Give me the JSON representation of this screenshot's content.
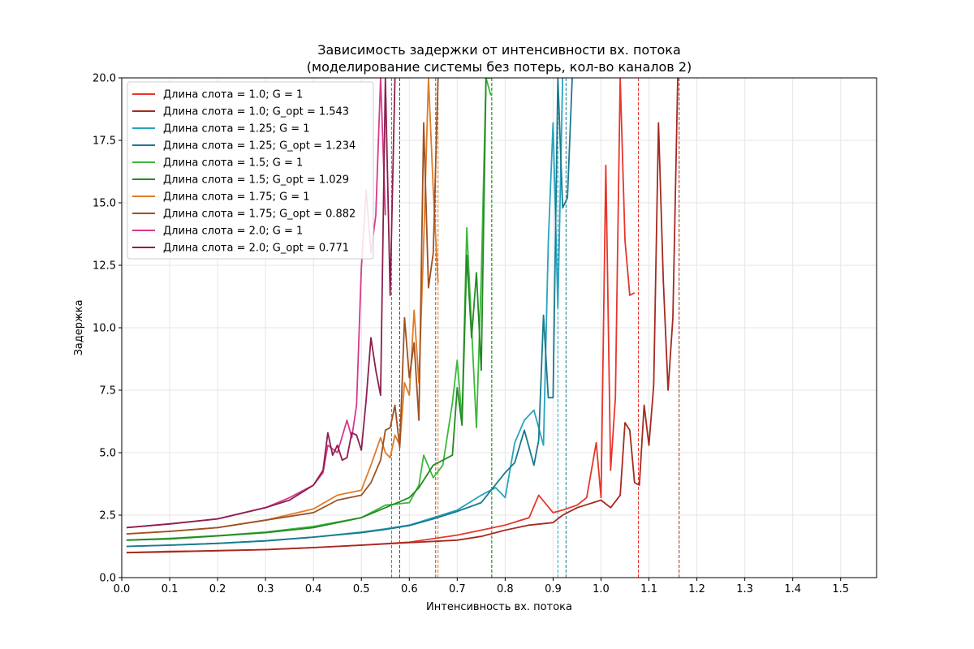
{
  "chart_data": {
    "type": "line",
    "title_line1": "Зависимость задержки от интенсивности вх. потока",
    "title_line2": "(моделирование системы без потерь, кол-во каналов 2)",
    "xlabel": "Интенсивность вх. потока",
    "ylabel": "Задержка",
    "xlim": [
      0.0,
      1.575
    ],
    "ylim": [
      0.0,
      20.0
    ],
    "xticks": [
      "0.0",
      "0.1",
      "0.2",
      "0.3",
      "0.4",
      "0.5",
      "0.6",
      "0.7",
      "0.8",
      "0.9",
      "1.0",
      "1.1",
      "1.2",
      "1.3",
      "1.4",
      "1.5"
    ],
    "yticks": [
      "0.0",
      "2.5",
      "5.0",
      "7.5",
      "10.0",
      "12.5",
      "15.0",
      "17.5",
      "20.0"
    ],
    "grid": true,
    "legend_position": "top-left",
    "series": [
      {
        "name": "Длина слота = 1.0; G = 1",
        "color": "#e8352b",
        "vline": 1.078,
        "x": [
          0.01,
          0.1,
          0.2,
          0.3,
          0.4,
          0.5,
          0.6,
          0.7,
          0.75,
          0.8,
          0.85,
          0.87,
          0.9,
          0.92,
          0.95,
          0.97,
          0.99,
          1.0,
          1.01,
          1.02,
          1.03,
          1.04,
          1.05,
          1.06,
          1.07
        ],
        "y": [
          1.0,
          1.05,
          1.07,
          1.12,
          1.2,
          1.3,
          1.42,
          1.7,
          1.9,
          2.1,
          2.4,
          3.3,
          2.6,
          2.7,
          2.9,
          3.2,
          5.4,
          3.2,
          16.5,
          4.3,
          7.2,
          20.0,
          13.5,
          11.3,
          11.4
        ]
      },
      {
        "name": "Длина слота = 1.0; G_opt = 1.543",
        "color": "#a52a1f",
        "vline": 1.163,
        "x": [
          0.01,
          0.1,
          0.2,
          0.3,
          0.4,
          0.5,
          0.6,
          0.7,
          0.75,
          0.8,
          0.85,
          0.9,
          0.92,
          0.95,
          1.0,
          1.02,
          1.04,
          1.05,
          1.06,
          1.07,
          1.08,
          1.09,
          1.1,
          1.11,
          1.12,
          1.13,
          1.14,
          1.15,
          1.16
        ],
        "y": [
          1.0,
          1.03,
          1.08,
          1.12,
          1.2,
          1.3,
          1.4,
          1.5,
          1.65,
          1.9,
          2.1,
          2.2,
          2.5,
          2.8,
          3.1,
          2.8,
          3.3,
          6.2,
          5.9,
          3.8,
          3.7,
          6.9,
          5.3,
          7.7,
          18.2,
          11.9,
          7.5,
          10.4,
          20.0
        ]
      },
      {
        "name": "Длина слота = 1.25; G = 1",
        "color": "#28a3c0",
        "vline": 0.91,
        "x": [
          0.01,
          0.1,
          0.2,
          0.3,
          0.4,
          0.5,
          0.55,
          0.6,
          0.65,
          0.7,
          0.75,
          0.78,
          0.8,
          0.82,
          0.84,
          0.86,
          0.88,
          0.89,
          0.9,
          0.91,
          0.92
        ],
        "y": [
          1.25,
          1.3,
          1.37,
          1.47,
          1.62,
          1.82,
          1.95,
          2.1,
          2.4,
          2.7,
          3.3,
          3.6,
          3.2,
          5.4,
          6.3,
          6.7,
          5.3,
          13.4,
          18.2,
          10.8,
          20.0
        ]
      },
      {
        "name": "Длина слота = 1.25; G_opt = 1.234",
        "color": "#1a7a8c",
        "vline": 0.927,
        "x": [
          0.01,
          0.1,
          0.2,
          0.3,
          0.4,
          0.5,
          0.55,
          0.6,
          0.65,
          0.7,
          0.75,
          0.8,
          0.82,
          0.84,
          0.86,
          0.87,
          0.88,
          0.89,
          0.9,
          0.91,
          0.92,
          0.93,
          0.94
        ],
        "y": [
          1.25,
          1.3,
          1.37,
          1.47,
          1.62,
          1.8,
          1.93,
          2.08,
          2.35,
          2.65,
          3.0,
          4.2,
          4.6,
          5.9,
          4.5,
          5.5,
          10.5,
          7.2,
          7.2,
          20.0,
          14.8,
          15.2,
          20.0
        ]
      },
      {
        "name": "Длина слота = 1.5; G = 1",
        "color": "#3cb83c",
        "vline": 0.772,
        "x": [
          0.01,
          0.1,
          0.2,
          0.3,
          0.4,
          0.5,
          0.55,
          0.6,
          0.62,
          0.63,
          0.65,
          0.67,
          0.69,
          0.7,
          0.71,
          0.72,
          0.73,
          0.74,
          0.75,
          0.76,
          0.77
        ],
        "y": [
          1.5,
          1.57,
          1.68,
          1.82,
          2.05,
          2.4,
          2.9,
          3.0,
          3.7,
          4.9,
          4.0,
          4.5,
          7.0,
          8.7,
          6.3,
          14.0,
          10.0,
          6.0,
          12.0,
          20.0,
          19.3
        ]
      },
      {
        "name": "Длина слота = 1.5; G_opt = 1.029",
        "color": "#248a24",
        "vline": 0.772,
        "x": [
          0.01,
          0.1,
          0.2,
          0.3,
          0.4,
          0.5,
          0.55,
          0.6,
          0.62,
          0.63,
          0.65,
          0.66,
          0.68,
          0.69,
          0.7,
          0.71,
          0.72,
          0.73,
          0.74,
          0.75,
          0.76,
          0.77
        ],
        "y": [
          1.5,
          1.55,
          1.67,
          1.8,
          2.0,
          2.4,
          2.8,
          3.2,
          3.6,
          3.9,
          4.5,
          4.6,
          4.8,
          4.9,
          7.6,
          6.1,
          12.9,
          9.6,
          12.2,
          8.3,
          20.0,
          20.0
        ]
      },
      {
        "name": "Длина слота = 1.75; G = 1",
        "color": "#e07b28",
        "vline": 0.66,
        "x": [
          0.01,
          0.1,
          0.2,
          0.3,
          0.4,
          0.45,
          0.5,
          0.52,
          0.54,
          0.55,
          0.56,
          0.57,
          0.58,
          0.59,
          0.6,
          0.61,
          0.62,
          0.63,
          0.64,
          0.65,
          0.66
        ],
        "y": [
          1.75,
          1.85,
          2.0,
          2.3,
          2.75,
          3.3,
          3.5,
          4.5,
          5.6,
          5.0,
          4.8,
          5.7,
          5.3,
          7.8,
          7.3,
          10.7,
          7.8,
          13.4,
          20.0,
          15.5,
          11.8
        ]
      },
      {
        "name": "Длина слота = 1.75; G_opt = 0.882",
        "color": "#9c5223",
        "vline": 0.655,
        "x": [
          0.01,
          0.1,
          0.2,
          0.3,
          0.4,
          0.45,
          0.5,
          0.52,
          0.54,
          0.55,
          0.56,
          0.57,
          0.58,
          0.59,
          0.6,
          0.61,
          0.62,
          0.63,
          0.64,
          0.65,
          0.66
        ],
        "y": [
          1.75,
          1.85,
          2.0,
          2.3,
          2.6,
          3.1,
          3.3,
          3.8,
          4.7,
          5.9,
          6.0,
          6.9,
          5.2,
          10.4,
          8.0,
          9.4,
          6.3,
          18.2,
          11.6,
          13.0,
          20.0
        ]
      },
      {
        "name": "Длина слота = 2.0; G = 1",
        "color": "#d63a8c",
        "vline": 0.563,
        "x": [
          0.01,
          0.1,
          0.2,
          0.3,
          0.35,
          0.4,
          0.42,
          0.43,
          0.45,
          0.47,
          0.48,
          0.49,
          0.5,
          0.51,
          0.52,
          0.53,
          0.54,
          0.55
        ],
        "y": [
          2.0,
          2.15,
          2.35,
          2.8,
          3.2,
          3.7,
          4.2,
          5.3,
          5.0,
          6.3,
          5.6,
          6.9,
          12.4,
          15.5,
          13.0,
          14.5,
          20.0,
          14.5
        ]
      },
      {
        "name": "Длина слота = 2.0; G_opt = 0.771",
        "color": "#8c1f4f",
        "vline": 0.58,
        "x": [
          0.01,
          0.1,
          0.2,
          0.3,
          0.35,
          0.4,
          0.42,
          0.43,
          0.44,
          0.45,
          0.46,
          0.47,
          0.48,
          0.49,
          0.5,
          0.51,
          0.52,
          0.53,
          0.54,
          0.55,
          0.56,
          0.57
        ],
        "y": [
          2.0,
          2.15,
          2.35,
          2.8,
          3.1,
          3.7,
          4.3,
          5.8,
          4.9,
          5.3,
          4.7,
          4.8,
          5.8,
          5.7,
          5.1,
          7.1,
          9.6,
          8.3,
          7.3,
          20.0,
          11.3,
          20.0
        ]
      }
    ]
  }
}
